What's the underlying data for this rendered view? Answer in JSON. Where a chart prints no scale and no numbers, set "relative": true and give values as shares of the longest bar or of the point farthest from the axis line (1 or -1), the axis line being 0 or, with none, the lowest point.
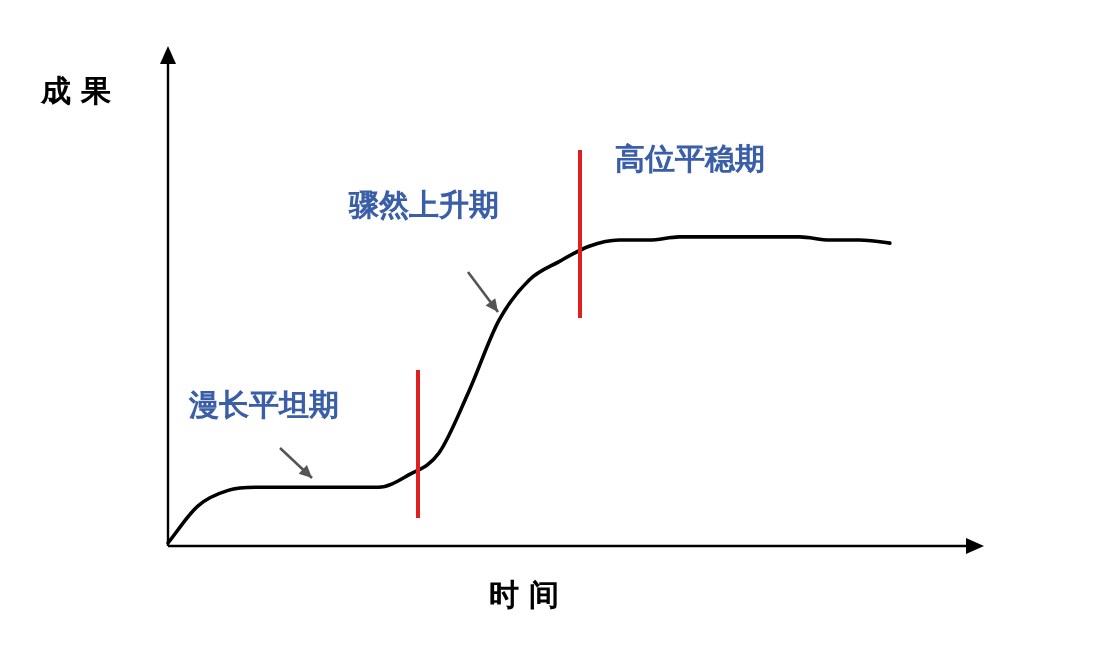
{
  "chart_data": {
    "type": "line",
    "relative": true,
    "xlabel": "时 间",
    "ylabel": "成 果",
    "annotations": [
      "漫长平坦期",
      "骤然上升期",
      "高位平稳期"
    ],
    "categories": [
      null,
      null,
      null,
      null,
      null,
      null,
      null,
      null,
      null,
      null,
      null,
      null,
      null,
      null,
      null,
      null,
      null,
      null,
      null,
      null,
      null,
      null,
      null,
      null,
      null
    ],
    "series": [
      {
        "color": "#000000",
        "values": [
          0.01,
          0.13,
          0.18,
          0.19,
          0.19,
          0.19,
          0.19,
          0.19,
          0.23,
          0.3,
          0.5,
          0.73,
          0.86,
          0.92,
          0.97,
          0.99,
          0.99,
          1,
          1,
          1,
          1,
          1,
          0.99,
          0.99,
          0.98
        ]
      }
    ],
    "legend": false,
    "marker": "none",
    "line_style": "solid"
  }
}
